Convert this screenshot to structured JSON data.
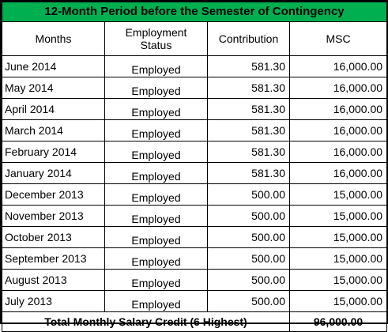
{
  "title": "12-Month Period before the Semester of Contingency",
  "headers": {
    "months": "Months",
    "status": "Employment Status",
    "contribution": "Contribution",
    "msc": "MSC"
  },
  "rows": [
    {
      "month": "June 2014",
      "status": "Employed",
      "contribution": "581.30",
      "msc": "16,000.00"
    },
    {
      "month": "May 2014",
      "status": "Employed",
      "contribution": "581.30",
      "msc": "16,000.00"
    },
    {
      "month": "April 2014",
      "status": "Employed",
      "contribution": "581.30",
      "msc": "16,000.00"
    },
    {
      "month": "March 2014",
      "status": "Employed",
      "contribution": "581.30",
      "msc": "16,000.00"
    },
    {
      "month": "February 2014",
      "status": "Employed",
      "contribution": "581.30",
      "msc": "16,000.00"
    },
    {
      "month": "January 2014",
      "status": "Employed",
      "contribution": "581.30",
      "msc": "16,000.00"
    },
    {
      "month": "December 2013",
      "status": "Employed",
      "contribution": "500.00",
      "msc": "15,000.00"
    },
    {
      "month": "November 2013",
      "status": "Employed",
      "contribution": "500.00",
      "msc": "15,000.00"
    },
    {
      "month": "October 2013",
      "status": "Employed",
      "contribution": "500.00",
      "msc": "15,000.00"
    },
    {
      "month": "September 2013",
      "status": "Employed",
      "contribution": "500.00",
      "msc": "15,000.00"
    },
    {
      "month": "August 2013",
      "status": "Employed",
      "contribution": "500.00",
      "msc": "15,000.00"
    },
    {
      "month": "July 2013",
      "status": "Employed",
      "contribution": "500.00",
      "msc": "15,000.00"
    }
  ],
  "total": {
    "label": "Total Monthly Salary Credit (6 Highest)",
    "value": "96,000.00"
  },
  "colors": {
    "title_background": "#00b050",
    "border": "#000000"
  }
}
